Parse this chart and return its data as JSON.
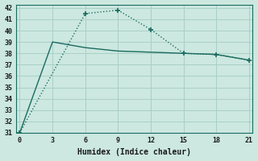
{
  "xlabel": "Humidex (Indice chaleur)",
  "background_color": "#cce8e0",
  "grid_color": "#aacfc8",
  "line_color": "#1a6b60",
  "line1_x": [
    0,
    3,
    6,
    9,
    12,
    15,
    18,
    21
  ],
  "line1_y": [
    31.0,
    39.0,
    38.5,
    38.2,
    38.1,
    38.0,
    37.9,
    37.4
  ],
  "line2_x": [
    0,
    6,
    9,
    12,
    15,
    18,
    21
  ],
  "line2_y": [
    31.0,
    41.5,
    41.8,
    40.1,
    38.0,
    37.9,
    37.4
  ],
  "xlim": [
    -0.3,
    21.3
  ],
  "ylim": [
    31,
    42.3
  ],
  "xticks": [
    0,
    3,
    6,
    9,
    12,
    15,
    18,
    21
  ],
  "yticks": [
    31,
    32,
    33,
    34,
    35,
    36,
    37,
    38,
    39,
    40,
    41,
    42
  ],
  "tick_fontsize": 6,
  "xlabel_fontsize": 7
}
